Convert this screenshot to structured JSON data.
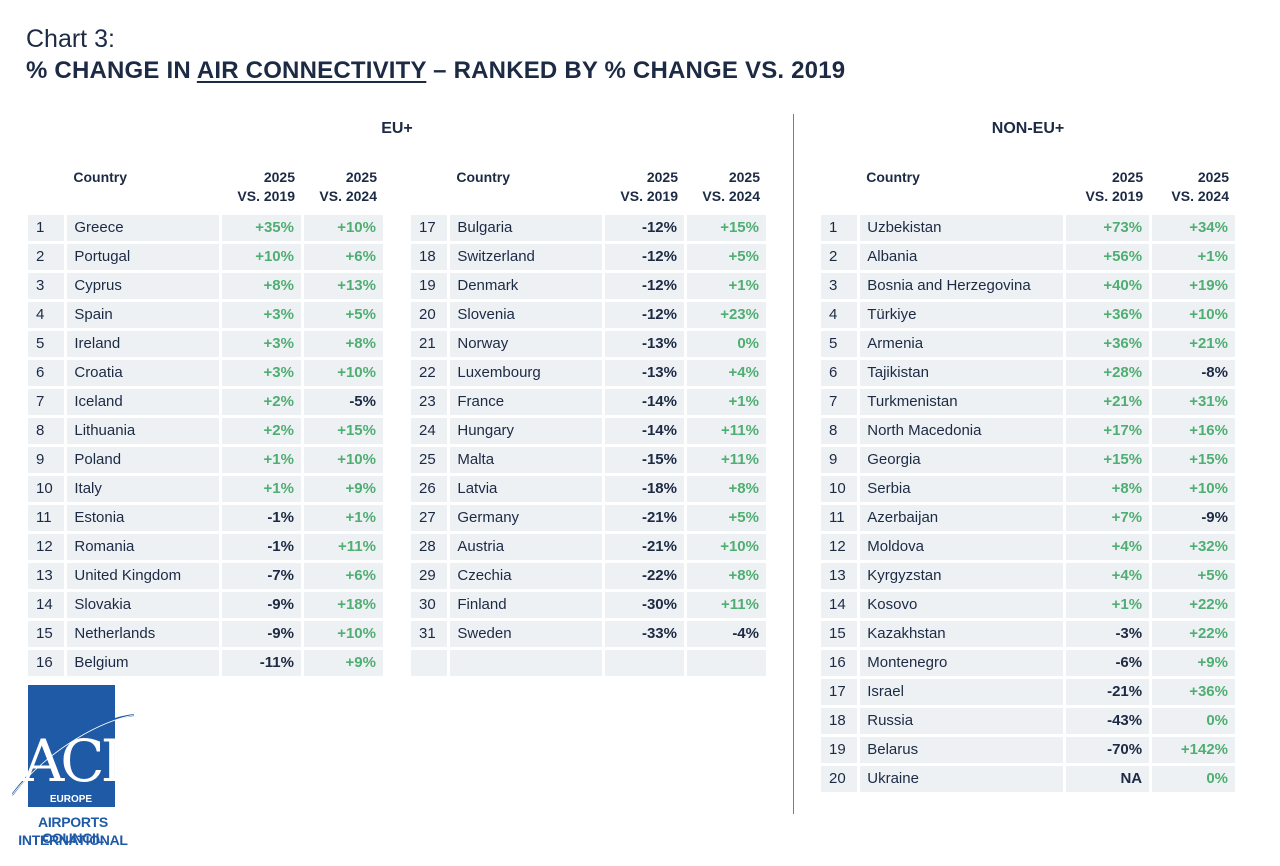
{
  "header": {
    "chart_label": "Chart 3:",
    "title_prefix": "% CHANGE IN ",
    "title_underlined": "AIR CONNECTIVITY",
    "title_suffix": " – RANKED BY % CHANGE VS. 2019"
  },
  "columns": {
    "country": "Country",
    "c2019_line1": "2025",
    "c2019_line2": "VS. 2019",
    "c2024_line1": "2025",
    "c2024_line2": "VS. 2024"
  },
  "eu": {
    "heading": "EU+",
    "left": [
      {
        "rank": "1",
        "country": "Greece",
        "v2019": "+35%",
        "v2024": "+10%"
      },
      {
        "rank": "2",
        "country": "Portugal",
        "v2019": "+10%",
        "v2024": "+6%"
      },
      {
        "rank": "3",
        "country": "Cyprus",
        "v2019": "+8%",
        "v2024": "+13%"
      },
      {
        "rank": "4",
        "country": "Spain",
        "v2019": "+3%",
        "v2024": "+5%"
      },
      {
        "rank": "5",
        "country": "Ireland",
        "v2019": "+3%",
        "v2024": "+8%"
      },
      {
        "rank": "6",
        "country": "Croatia",
        "v2019": "+3%",
        "v2024": "+10%"
      },
      {
        "rank": "7",
        "country": "Iceland",
        "v2019": "+2%",
        "v2024": "-5%"
      },
      {
        "rank": "8",
        "country": "Lithuania",
        "v2019": "+2%",
        "v2024": "+15%"
      },
      {
        "rank": "9",
        "country": "Poland",
        "v2019": "+1%",
        "v2024": "+10%"
      },
      {
        "rank": "10",
        "country": "Italy",
        "v2019": "+1%",
        "v2024": "+9%"
      },
      {
        "rank": "11",
        "country": "Estonia",
        "v2019": "-1%",
        "v2024": "+1%"
      },
      {
        "rank": "12",
        "country": "Romania",
        "v2019": "-1%",
        "v2024": "+11%"
      },
      {
        "rank": "13",
        "country": "United Kingdom",
        "v2019": "-7%",
        "v2024": "+6%"
      },
      {
        "rank": "14",
        "country": "Slovakia",
        "v2019": "-9%",
        "v2024": "+18%"
      },
      {
        "rank": "15",
        "country": "Netherlands",
        "v2019": "-9%",
        "v2024": "+10%"
      },
      {
        "rank": "16",
        "country": "Belgium",
        "v2019": "-11%",
        "v2024": "+9%"
      }
    ],
    "right": [
      {
        "rank": "17",
        "country": "Bulgaria",
        "v2019": "-12%",
        "v2024": "+15%"
      },
      {
        "rank": "18",
        "country": "Switzerland",
        "v2019": "-12%",
        "v2024": "+5%"
      },
      {
        "rank": "19",
        "country": "Denmark",
        "v2019": "-12%",
        "v2024": "+1%"
      },
      {
        "rank": "20",
        "country": "Slovenia",
        "v2019": "-12%",
        "v2024": "+23%"
      },
      {
        "rank": "21",
        "country": "Norway",
        "v2019": "-13%",
        "v2024": "0%"
      },
      {
        "rank": "22",
        "country": "Luxembourg",
        "v2019": "-13%",
        "v2024": "+4%"
      },
      {
        "rank": "23",
        "country": "France",
        "v2019": "-14%",
        "v2024": "+1%"
      },
      {
        "rank": "24",
        "country": "Hungary",
        "v2019": "-14%",
        "v2024": "+11%"
      },
      {
        "rank": "25",
        "country": "Malta",
        "v2019": "-15%",
        "v2024": "+11%"
      },
      {
        "rank": "26",
        "country": "Latvia",
        "v2019": "-18%",
        "v2024": "+8%"
      },
      {
        "rank": "27",
        "country": "Germany",
        "v2019": "-21%",
        "v2024": "+5%"
      },
      {
        "rank": "28",
        "country": "Austria",
        "v2019": "-21%",
        "v2024": "+10%"
      },
      {
        "rank": "29",
        "country": "Czechia",
        "v2019": "-22%",
        "v2024": "+8%"
      },
      {
        "rank": "30",
        "country": "Finland",
        "v2019": "-30%",
        "v2024": "+11%"
      },
      {
        "rank": "31",
        "country": "Sweden",
        "v2019": "-33%",
        "v2024": "-4%"
      },
      {
        "rank": "",
        "country": "",
        "v2019": "",
        "v2024": ""
      }
    ]
  },
  "noneu": {
    "heading": "NON-EU+",
    "rows": [
      {
        "rank": "1",
        "country": "Uzbekistan",
        "v2019": "+73%",
        "v2024": "+34%"
      },
      {
        "rank": "2",
        "country": "Albania",
        "v2019": "+56%",
        "v2024": "+1%"
      },
      {
        "rank": "3",
        "country": "Bosnia and Herzegovina",
        "v2019": "+40%",
        "v2024": "+19%"
      },
      {
        "rank": "4",
        "country": "Türkiye",
        "v2019": "+36%",
        "v2024": "+10%"
      },
      {
        "rank": "5",
        "country": "Armenia",
        "v2019": "+36%",
        "v2024": "+21%"
      },
      {
        "rank": "6",
        "country": "Tajikistan",
        "v2019": "+28%",
        "v2024": "-8%"
      },
      {
        "rank": "7",
        "country": "Turkmenistan",
        "v2019": "+21%",
        "v2024": "+31%"
      },
      {
        "rank": "8",
        "country": "North Macedonia",
        "v2019": "+17%",
        "v2024": "+16%"
      },
      {
        "rank": "9",
        "country": "Georgia",
        "v2019": "+15%",
        "v2024": "+15%"
      },
      {
        "rank": "10",
        "country": "Serbia",
        "v2019": "+8%",
        "v2024": "+10%"
      },
      {
        "rank": "11",
        "country": "Azerbaijan",
        "v2019": "+7%",
        "v2024": "-9%"
      },
      {
        "rank": "12",
        "country": "Moldova",
        "v2019": "+4%",
        "v2024": "+32%"
      },
      {
        "rank": "13",
        "country": "Kyrgyzstan",
        "v2019": "+4%",
        "v2024": "+5%"
      },
      {
        "rank": "14",
        "country": "Kosovo",
        "v2019": "+1%",
        "v2024": "+22%"
      },
      {
        "rank": "15",
        "country": "Kazakhstan",
        "v2019": "-3%",
        "v2024": "+22%"
      },
      {
        "rank": "16",
        "country": "Montenegro",
        "v2019": "-6%",
        "v2024": "+9%"
      },
      {
        "rank": "17",
        "country": "Israel",
        "v2019": "-21%",
        "v2024": "+36%"
      },
      {
        "rank": "18",
        "country": "Russia",
        "v2019": "-43%",
        "v2024": "0%"
      },
      {
        "rank": "19",
        "country": "Belarus",
        "v2019": "-70%",
        "v2024": "+142%"
      },
      {
        "rank": "20",
        "country": "Ukraine",
        "v2019": "NA",
        "v2024": "0%"
      }
    ]
  },
  "logo": {
    "letters": "ACI",
    "region": "EUROPE",
    "line1": "AIRPORTS COUNCIL",
    "line2": "INTERNATIONAL"
  },
  "colors": {
    "positive": "#4fae72",
    "negative": "#1c2a44",
    "cell_bg": "#eef1f4",
    "brand_blue": "#1f5aa6"
  }
}
